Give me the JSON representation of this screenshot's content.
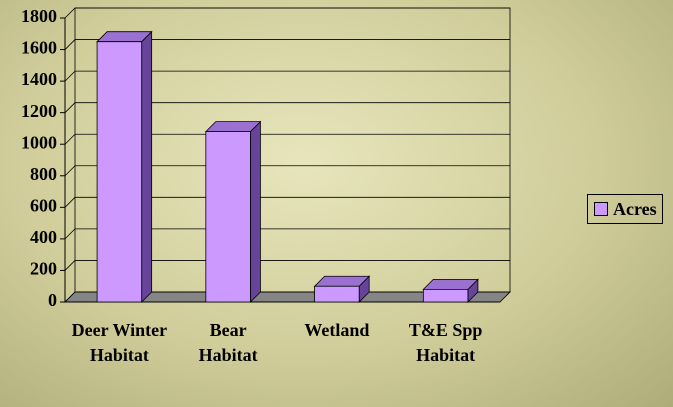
{
  "chart_data": {
    "type": "bar",
    "categories": [
      "Deer Winter Habitat",
      "Bear Habitat",
      "Wetland",
      "T&E Spp Habitat"
    ],
    "series": [
      {
        "name": "Acres",
        "color": "#cc99ff",
        "values": [
          1650,
          1080,
          100,
          80
        ]
      }
    ],
    "ylim": [
      0,
      1800
    ],
    "yticks": [
      0,
      200,
      400,
      600,
      800,
      1000,
      1200,
      1400,
      1600,
      1800
    ],
    "grid": true,
    "legend": "right"
  }
}
